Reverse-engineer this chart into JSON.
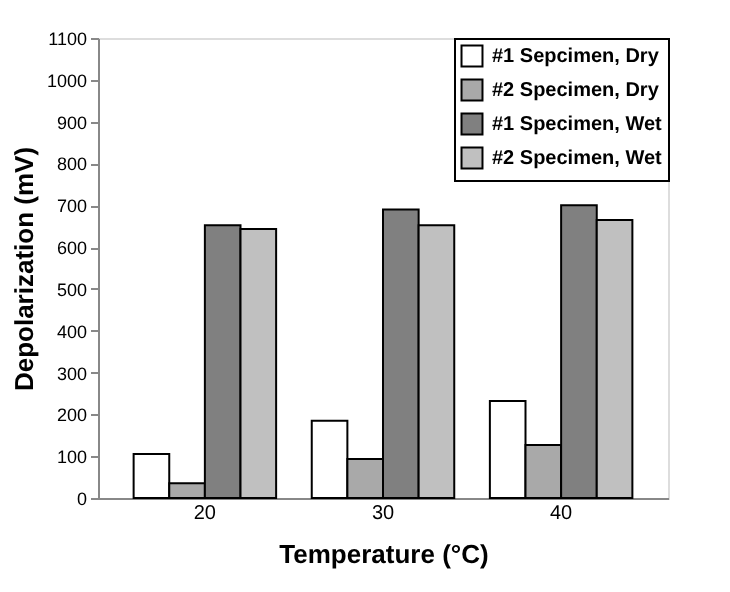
{
  "chart_data": {
    "type": "bar",
    "xlabel": "Temperature (°C)",
    "ylabel": "Depolarization (mV)",
    "categories": [
      "20",
      "30",
      "40"
    ],
    "series": [
      {
        "name": "#1 Sepcimen, Dry",
        "color": "#ffffff",
        "values": [
          105,
          185,
          232
        ]
      },
      {
        "name": "#2 Specimen, Dry",
        "color": "#a9a9a9",
        "values": [
          35,
          93,
          127
        ]
      },
      {
        "name": "#1 Specimen, Wet",
        "color": "#808080",
        "values": [
          652,
          690,
          700
        ]
      },
      {
        "name": "#2 Specimen, Wet",
        "color": "#c0c0c0",
        "values": [
          643,
          652,
          665
        ]
      }
    ],
    "ylim": [
      0,
      1100
    ],
    "yticks": [
      0,
      100,
      200,
      300,
      400,
      500,
      600,
      700,
      800,
      900,
      1000,
      1100
    ],
    "grid": false,
    "legend": "top right"
  }
}
